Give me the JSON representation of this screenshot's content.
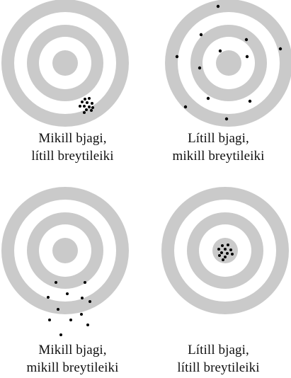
{
  "colors": {
    "ring": "#cacaca",
    "background": "#ffffff",
    "dot": "#000000",
    "text": "#111111"
  },
  "panels": [
    {
      "caption_line1": "Mikill bjagi,",
      "caption_line2": "lítill breytileiki"
    },
    {
      "caption_line1": "Lítill bjagi,",
      "caption_line2": "mikill breytileiki"
    },
    {
      "caption_line1": "Mikill bjagi,",
      "caption_line2": "mikill breytileiki"
    },
    {
      "caption_line1": "Lítill bjagi,",
      "caption_line2": "lítill breytileiki"
    }
  ]
}
